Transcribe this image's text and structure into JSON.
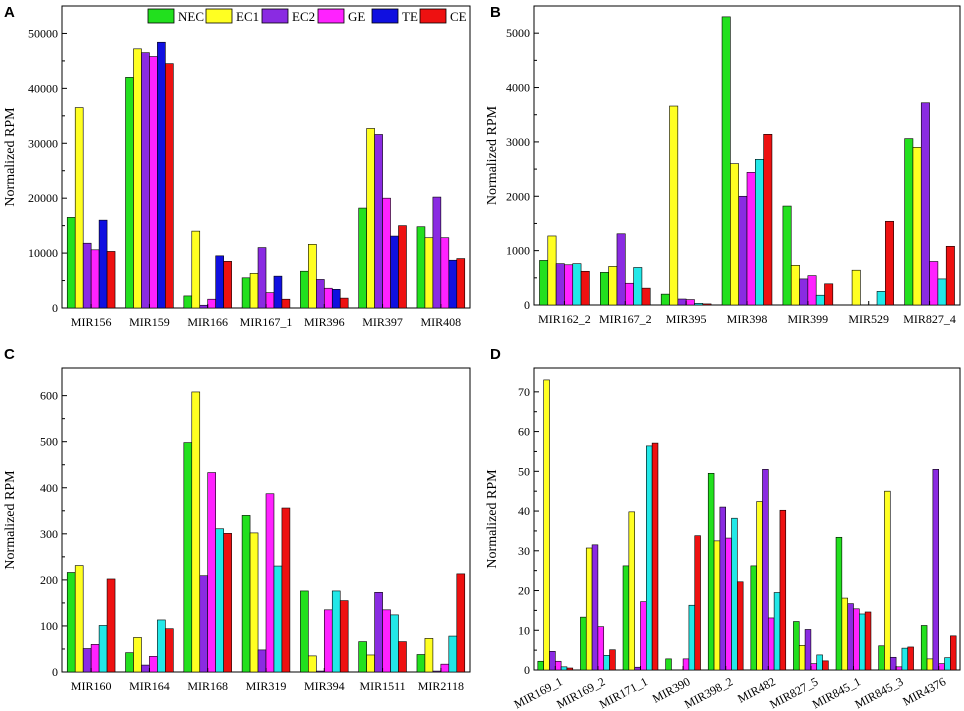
{
  "legend": [
    "NEC",
    "EC1",
    "EC2",
    "GE",
    "TE",
    "CE"
  ],
  "chart_data": [
    {
      "type": "bar",
      "panel": "A",
      "ylabel": "Normalized RPM",
      "ylim": [
        0,
        55000
      ],
      "yticks": [
        0,
        10000,
        20000,
        30000,
        40000,
        50000
      ],
      "categories": [
        "MIR156",
        "MIR159",
        "MIR166",
        "MIR167_1",
        "MIR396",
        "MIR397",
        "MIR408"
      ],
      "series": [
        {
          "name": "NEC",
          "color": "#22e01e",
          "values": [
            16500,
            42000,
            2200,
            5500,
            6700,
            18200,
            14800
          ]
        },
        {
          "name": "EC1",
          "color": "#ffff22",
          "values": [
            36500,
            47200,
            14000,
            6300,
            11600,
            32700,
            12800
          ]
        },
        {
          "name": "EC2",
          "color": "#8a2be2",
          "values": [
            11800,
            46500,
            500,
            11000,
            5200,
            31600,
            20200
          ]
        },
        {
          "name": "GE",
          "color": "#ff22ff",
          "values": [
            10600,
            45800,
            1600,
            2800,
            3600,
            20000,
            12800
          ]
        },
        {
          "name": "TE",
          "color": "#1010e0",
          "values": [
            16000,
            48400,
            9500,
            5800,
            3400,
            13100,
            8700
          ]
        },
        {
          "name": "CE",
          "color": "#ee1111",
          "values": [
            10300,
            44500,
            8500,
            1600,
            1800,
            15000,
            9000
          ]
        }
      ]
    },
    {
      "type": "bar",
      "panel": "B",
      "ylabel": "Normalized RPM",
      "ylim": [
        0,
        5500
      ],
      "yticks": [
        0,
        1000,
        2000,
        3000,
        4000,
        5000
      ],
      "categories": [
        "MIR162_2",
        "MIR167_2",
        "MIR395",
        "MIR398",
        "MIR399",
        "MIR529",
        "MIR827_4"
      ],
      "series": [
        {
          "name": "NEC",
          "color": "#22e01e",
          "values": [
            820,
            600,
            200,
            5300,
            1820,
            0,
            3060
          ]
        },
        {
          "name": "EC1",
          "color": "#ffff22",
          "values": [
            1270,
            710,
            3660,
            2600,
            730,
            640,
            2900
          ]
        },
        {
          "name": "EC2",
          "color": "#8a2be2",
          "values": [
            760,
            1310,
            110,
            2000,
            480,
            0,
            3720
          ]
        },
        {
          "name": "GE",
          "color": "#ff22ff",
          "values": [
            740,
            400,
            100,
            2440,
            540,
            0,
            800
          ]
        },
        {
          "name": "TE",
          "color": "#22e8e8",
          "values": [
            760,
            690,
            30,
            2680,
            180,
            250,
            480
          ]
        },
        {
          "name": "CE",
          "color": "#ee1111",
          "values": [
            620,
            310,
            20,
            3140,
            390,
            1540,
            1080
          ]
        }
      ]
    },
    {
      "type": "bar",
      "panel": "C",
      "ylabel": "Normalized RPM",
      "ylim": [
        0,
        660
      ],
      "yticks": [
        0,
        100,
        200,
        300,
        400,
        500,
        600
      ],
      "categories": [
        "MIR160",
        "MIR164",
        "MIR168",
        "MIR319",
        "MIR394",
        "MIR1511",
        "MIR2118"
      ],
      "series": [
        {
          "name": "NEC",
          "color": "#22e01e",
          "values": [
            216,
            42,
            498,
            340,
            176,
            66,
            38
          ]
        },
        {
          "name": "EC1",
          "color": "#ffff22",
          "values": [
            231,
            75,
            608,
            302,
            35,
            37,
            73
          ]
        },
        {
          "name": "EC2",
          "color": "#8a2be2",
          "values": [
            51,
            15,
            209,
            48,
            2,
            173,
            2
          ]
        },
        {
          "name": "GE",
          "color": "#ff22ff",
          "values": [
            60,
            34,
            433,
            387,
            135,
            135,
            17
          ]
        },
        {
          "name": "TE",
          "color": "#22e8e8",
          "values": [
            101,
            113,
            311,
            230,
            176,
            124,
            78
          ]
        },
        {
          "name": "CE",
          "color": "#ee1111",
          "values": [
            202,
            94,
            301,
            356,
            155,
            66,
            213
          ]
        }
      ]
    },
    {
      "type": "bar",
      "panel": "D",
      "ylabel": "Normalized RPM",
      "ylim": [
        0,
        76
      ],
      "yticks": [
        0,
        10,
        20,
        30,
        40,
        50,
        60,
        70
      ],
      "categories": [
        "MIR169_1",
        "MIR169_2",
        "MIR171_1",
        "MIR390",
        "MIR398_2",
        "MIR482",
        "MIR827_5",
        "MIR845_1",
        "MIR845_3",
        "MIR4376"
      ],
      "series": [
        {
          "name": "NEC",
          "color": "#22e01e",
          "values": [
            2.2,
            13.3,
            26.2,
            2.8,
            49.5,
            26.2,
            12.2,
            33.4,
            6.1,
            11.2
          ]
        },
        {
          "name": "EC1",
          "color": "#ffff22",
          "values": [
            73,
            30.7,
            39.8,
            0,
            32.5,
            42.4,
            6.2,
            18.1,
            45,
            2.8
          ]
        },
        {
          "name": "EC2",
          "color": "#8a2be2",
          "values": [
            4.7,
            31.5,
            0.7,
            0,
            41,
            50.5,
            10.2,
            16.7,
            3.2,
            50.5
          ]
        },
        {
          "name": "GE",
          "color": "#ff22ff",
          "values": [
            2.2,
            10.9,
            17.2,
            2.8,
            33.2,
            13.1,
            1.6,
            15.4,
            0.8,
            1.6
          ]
        },
        {
          "name": "TE",
          "color": "#22e8e8",
          "values": [
            0.8,
            3.7,
            56.4,
            16.3,
            38.2,
            19.5,
            3.8,
            14.1,
            5.5,
            3.1
          ]
        },
        {
          "name": "CE",
          "color": "#ee1111",
          "values": [
            0.5,
            5.1,
            57.1,
            33.8,
            22.2,
            40.2,
            2.3,
            14.6,
            5.8,
            8.6
          ]
        }
      ]
    }
  ]
}
